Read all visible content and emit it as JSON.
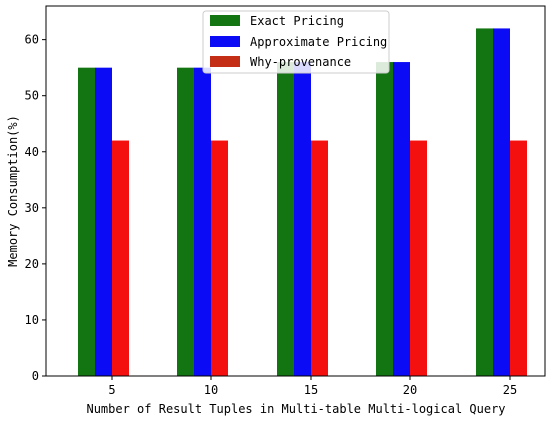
{
  "chart_data": {
    "type": "bar",
    "categories": [
      "5",
      "10",
      "15",
      "20",
      "25"
    ],
    "series": [
      {
        "name": "Exact Pricing",
        "values": [
          55,
          55,
          56,
          56,
          62
        ]
      },
      {
        "name": "Approximate Pricing",
        "values": [
          55,
          55,
          56,
          56,
          62
        ]
      },
      {
        "name": "Why-provenance",
        "values": [
          42,
          42,
          42,
          42,
          42
        ]
      }
    ],
    "xlabel": "Number of Result Tuples in Multi-table Multi-logical Query",
    "ylabel": "Memory Consumption(%)",
    "ylim": [
      0,
      66
    ],
    "yticks": [
      0,
      10,
      20,
      30,
      40,
      50,
      60
    ],
    "legend_position": "top-center",
    "grid": false,
    "colors": {
      "Exact Pricing": "#127512",
      "Approximate Pricing": "#0b0bf5",
      "Why-provenance": "#f51010",
      "legend_swatch_why": "#c42d16"
    }
  }
}
